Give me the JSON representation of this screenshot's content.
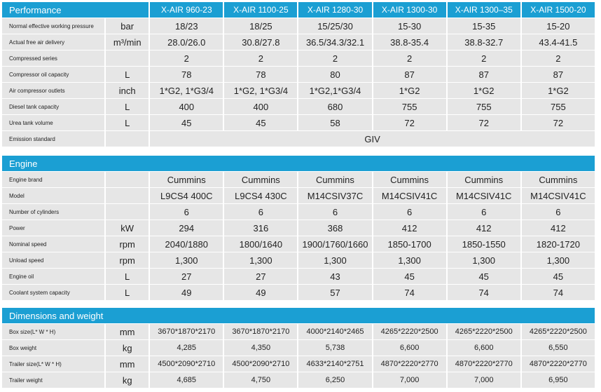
{
  "performance": {
    "title": "Performance",
    "models": [
      "X-AIR 960-23",
      "X-AIR 1100-25",
      "X-AIR 1280-30",
      "X-AIR 1300-30",
      "X-AIR 1300–35",
      "X-AIR 1500-20"
    ],
    "rows": [
      {
        "label": "Normal effective working pressure",
        "unit": "bar",
        "values": [
          "18/23",
          "18/25",
          "15/25/30",
          "15-30",
          "15-35",
          "15-20"
        ]
      },
      {
        "label": "Actual free air delivery",
        "unit": "m³/min",
        "values": [
          "28.0/26.0",
          "30.8/27.8",
          "36.5/34.3/32.1",
          "38.8-35.4",
          "38.8-32.7",
          "43.4-41.5"
        ]
      },
      {
        "label": "Compressed series",
        "unit": "",
        "values": [
          "2",
          "2",
          "2",
          "2",
          "2",
          "2"
        ]
      },
      {
        "label": "Compressor oil capacity",
        "unit": "L",
        "values": [
          "78",
          "78",
          "80",
          "87",
          "87",
          "87"
        ]
      },
      {
        "label": "Air compressor outlets",
        "unit": "inch",
        "values": [
          "1*G2, 1*G3/4",
          "1*G2, 1*G3/4",
          "1*G2,1*G3/4",
          "1*G2",
          "1*G2",
          "1*G2"
        ]
      },
      {
        "label": "Diesel tank capacity",
        "unit": "L",
        "values": [
          "400",
          "400",
          "680",
          "755",
          "755",
          "755"
        ]
      },
      {
        "label": "Urea tank volume",
        "unit": "L",
        "values": [
          "45",
          "45",
          "58",
          "72",
          "72",
          "72"
        ]
      }
    ],
    "emission": {
      "label": "Emission standard",
      "value": "GIV"
    }
  },
  "engine": {
    "title": "Engine",
    "rows": [
      {
        "label": "Engine brand",
        "unit": "",
        "values": [
          "Cummins",
          "Cummins",
          "Cummins",
          "Cummins",
          "Cummins",
          "Cummins"
        ]
      },
      {
        "label": "Model",
        "unit": "",
        "values": [
          "L9CS4 400C",
          "L9CS4 430C",
          "M14CSIV37C",
          "M14CSIV41C",
          "M14CSIV41C",
          "M14CSIV41C"
        ]
      },
      {
        "label": "Number of cylinders",
        "unit": "",
        "values": [
          "6",
          "6",
          "6",
          "6",
          "6",
          "6"
        ]
      },
      {
        "label": "Power",
        "unit": "kW",
        "values": [
          "294",
          "316",
          "368",
          "412",
          "412",
          "412"
        ]
      },
      {
        "label": "Nominal speed",
        "unit": "rpm",
        "values": [
          "2040/1880",
          "1800/1640",
          "1900/1760/1660",
          "1850-1700",
          "1850-1550",
          "1820-1720"
        ]
      },
      {
        "label": "Unload speed",
        "unit": "rpm",
        "values": [
          "1,300",
          "1,300",
          "1,300",
          "1,300",
          "1,300",
          "1,300"
        ]
      },
      {
        "label": "Engine oil",
        "unit": "L",
        "values": [
          "27",
          "27",
          "43",
          "45",
          "45",
          "45"
        ]
      },
      {
        "label": "Coolant system capacity",
        "unit": "L",
        "values": [
          "49",
          "49",
          "57",
          "74",
          "74",
          "74"
        ]
      }
    ]
  },
  "dimensions": {
    "title": "Dimensions and weight",
    "rows": [
      {
        "label": "Box size(L* W * H)",
        "unit": "mm",
        "values": [
          "3670*1870*2170",
          "3670*1870*2170",
          "4000*2140*2465",
          "4265*2220*2500",
          "4265*2220*2500",
          "4265*2220*2500"
        ]
      },
      {
        "label": "Box weight",
        "unit": "kg",
        "values": [
          "4,285",
          "4,350",
          "5,738",
          "6,600",
          "6,600",
          "6,550"
        ]
      },
      {
        "label": "Trailer size(L* W * H)",
        "unit": "mm",
        "values": [
          "4500*2090*2710",
          "4500*2090*2710",
          "4633*2140*2751",
          "4870*2220*2770",
          "4870*2220*2770",
          "4870*2220*2770"
        ]
      },
      {
        "label": "Trailer weight",
        "unit": "kg",
        "values": [
          "4,685",
          "4,750",
          "6,250",
          "7,000",
          "7,000",
          "6,950"
        ]
      }
    ]
  }
}
